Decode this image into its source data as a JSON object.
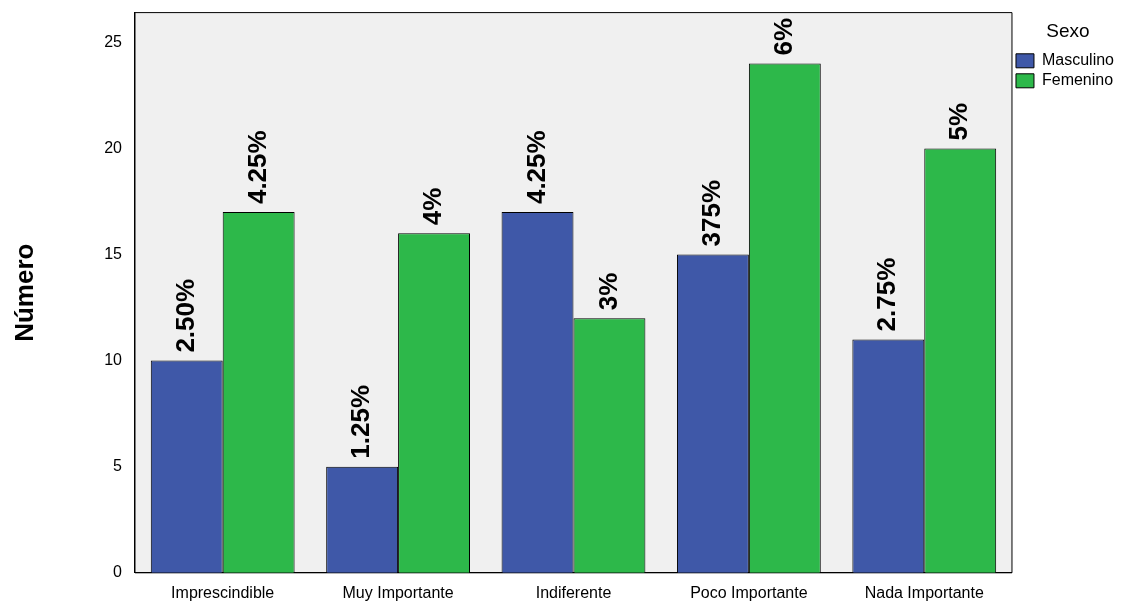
{
  "chart_data": {
    "type": "bar",
    "ylabel": "Número",
    "legend_title": "Sexo",
    "legend": "top right",
    "categories": [
      "Imprescindible",
      "Muy Importante",
      "Indiferente",
      "Poco Importante",
      "Nada Importante"
    ],
    "series": [
      {
        "name": "Masculino",
        "color": "#3f58a8",
        "values": [
          10,
          5,
          17,
          15,
          11
        ]
      },
      {
        "name": "Femenino",
        "color": "#2db84a",
        "values": [
          17,
          16,
          12,
          24,
          20
        ]
      }
    ],
    "annotations": [
      {
        "text": "2.50%",
        "x": "Imprescindible",
        "y": 10
      },
      {
        "text": "4.25%",
        "x": "Imprescindible",
        "y": 17
      },
      {
        "text": "1.25%",
        "x": "Muy Importante",
        "y": 5
      },
      {
        "text": "4%",
        "x": "Muy Importante",
        "y": 16
      },
      {
        "text": "4.25%",
        "x": "Indiferente",
        "y": 17
      },
      {
        "text": "3%",
        "x": "Indiferente",
        "y": 12
      },
      {
        "text": "375%",
        "x": "Poco Importante",
        "y": 15
      },
      {
        "text": "6%",
        "x": "Poco Importante",
        "y": 24
      },
      {
        "text": "2.75%",
        "x": "Nada Importante",
        "y": 11
      },
      {
        "text": "5%",
        "x": "Nada Importante",
        "y": 20
      }
    ],
    "ylim": [
      0,
      26.4
    ],
    "yticks": [
      0,
      5,
      10,
      15,
      20,
      25
    ],
    "grid": false
  }
}
